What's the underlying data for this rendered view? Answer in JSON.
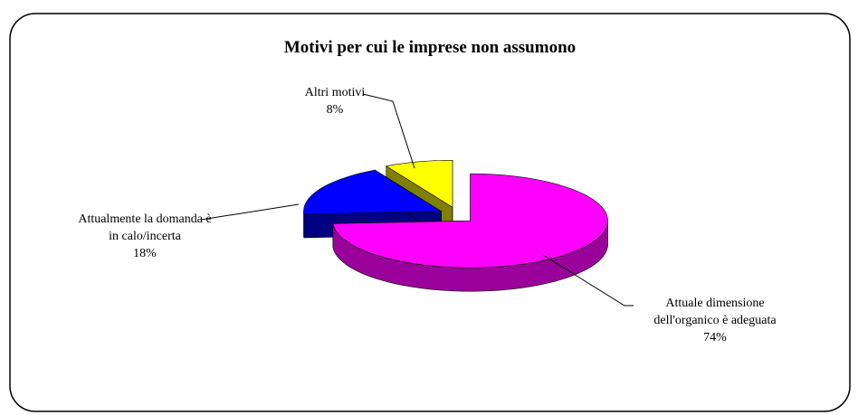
{
  "chart_data": {
    "type": "pie3d",
    "title": "Motivi per cui le imprese non assumono",
    "categories": [
      "Attuale dimensione dell'organico è adeguata",
      "Attualmente la domanda è in calo/incerta",
      "Altri motivi"
    ],
    "values": [
      74,
      18,
      8
    ],
    "value_labels": [
      "74%",
      "18%",
      "8%"
    ],
    "colors": [
      "#ff00ff",
      "#0000ff",
      "#ffff00"
    ],
    "side_colors": [
      "#9a009a",
      "#000080",
      "#808000"
    ]
  }
}
